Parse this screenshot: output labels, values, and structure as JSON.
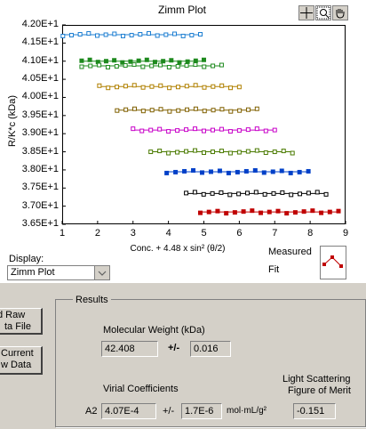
{
  "window": {
    "bg": "#d4d0c8"
  },
  "chart": {
    "title": "Zimm Plot",
    "tools": [
      "crosshair-icon",
      "zoom-icon",
      "pan-hand-icon"
    ]
  },
  "chart_data": {
    "type": "scatter",
    "title": "Zimm Plot",
    "xlabel": "Conc. + 4.48 x sin² (θ/2)",
    "ylabel": "R/K*c (kDa)",
    "xlim": [
      1,
      9
    ],
    "ylim": [
      36.5,
      42.0
    ],
    "x_ticks": [
      "1",
      "2",
      "3",
      "4",
      "5",
      "6",
      "7",
      "8",
      "9"
    ],
    "y_ticks": [
      "4.20E+1",
      "4.15E+1",
      "4.10E+1",
      "4.05E+1",
      "4.00E+1",
      "3.95E+1",
      "3.90E+1",
      "3.85E+1",
      "3.80E+1",
      "3.75E+1",
      "3.70E+1",
      "3.65E+1"
    ],
    "series": [
      {
        "color": "#1e7fd2",
        "marker": "open",
        "y": 41.73,
        "x0": 1.02,
        "x1": 4.9,
        "n": 17
      },
      {
        "color": "#1e8a1e",
        "marker": "filled",
        "y": 41.0,
        "x0": 1.55,
        "x1": 5.0,
        "n": 16
      },
      {
        "color": "#1e8a1e",
        "marker": "open",
        "y": 40.87,
        "x0": 1.55,
        "x1": 5.5,
        "n": 17
      },
      {
        "color": "#b08000",
        "marker": "open",
        "y": 40.3,
        "x0": 2.05,
        "x1": 6.0,
        "n": 17
      },
      {
        "color": "#806000",
        "marker": "open",
        "y": 39.65,
        "x0": 2.55,
        "x1": 6.5,
        "n": 17
      },
      {
        "color": "#c800c8",
        "marker": "open",
        "y": 39.1,
        "x0": 3.0,
        "x1": 7.0,
        "n": 17
      },
      {
        "color": "#4a7a00",
        "marker": "open",
        "y": 38.5,
        "x0": 3.5,
        "x1": 7.5,
        "n": 17
      },
      {
        "color": "#0040c8",
        "marker": "filled",
        "y": 37.95,
        "x0": 3.95,
        "x1": 7.95,
        "n": 17
      },
      {
        "color": "#000000",
        "marker": "open",
        "y": 37.35,
        "x0": 4.5,
        "x1": 8.45,
        "n": 17
      },
      {
        "color": "#c00000",
        "marker": "filled",
        "y": 36.84,
        "x0": 4.9,
        "x1": 8.8,
        "n": 17
      }
    ]
  },
  "legend": {
    "measured": "Measured",
    "fit": "Fit"
  },
  "display": {
    "label": "Display:",
    "value": "Zimm Plot"
  },
  "buttons": {
    "load_raw_line1": "d Raw",
    "load_raw_line2": "ta File",
    "current_line1": "Current",
    "current_line2": "w Data"
  },
  "results": {
    "group_title": "Results",
    "mw_label": "Molecular Weight  (kDa)",
    "mw_value": "42.408",
    "pm": "+/-",
    "mw_err": "0.016",
    "virial_label": "Virial Coefficients",
    "a2_label": "A2",
    "a2_value": "4.07E-4",
    "a2_pm": "+/-",
    "a2_err": "1.7E-6",
    "a2_unit": "mol·mL/g²",
    "fom_label_line1": "Light Scattering",
    "fom_label_line2": "Figure of Merit",
    "fom_value": "-0.151"
  }
}
